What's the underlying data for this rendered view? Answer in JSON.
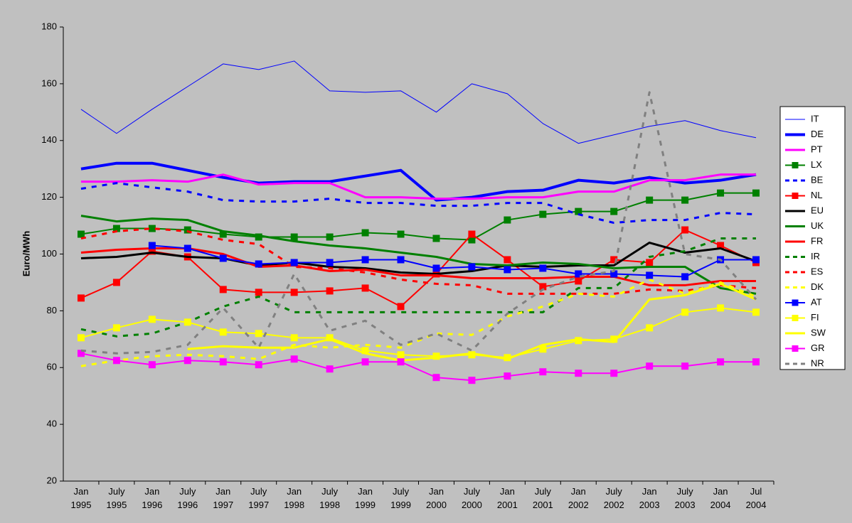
{
  "chart_data": {
    "type": "line",
    "y_label": "Euro/MWh",
    "categories": [
      [
        "Jan",
        "1995"
      ],
      [
        "July",
        "1995"
      ],
      [
        "Jan",
        "1996"
      ],
      [
        "July",
        "1996"
      ],
      [
        "Jan",
        "1997"
      ],
      [
        "July",
        "1997"
      ],
      [
        "Jan",
        "1998"
      ],
      [
        "July",
        "1998"
      ],
      [
        "Jan",
        "1999"
      ],
      [
        "July",
        "1999"
      ],
      [
        "Jan",
        "2000"
      ],
      [
        "July",
        "2000"
      ],
      [
        "Jan",
        "2001"
      ],
      [
        "July",
        "2001"
      ],
      [
        "Jan",
        "2002"
      ],
      [
        "July",
        "2002"
      ],
      [
        "Jan",
        "2003"
      ],
      [
        "July",
        "2003"
      ],
      [
        "Jan",
        "2004"
      ],
      [
        "Jul",
        "2004"
      ]
    ],
    "ylim": [
      20,
      180
    ],
    "yticks": [
      20,
      40,
      60,
      80,
      100,
      120,
      140,
      160,
      180
    ],
    "grid": false,
    "legend": "right",
    "series": [
      {
        "name": "IT",
        "color": "#0000ff",
        "line_width": 1,
        "dashed": false,
        "marker": false,
        "values": [
          151,
          142.5,
          151,
          159,
          167,
          165,
          168,
          157.5,
          157,
          157.5,
          150,
          160,
          156.5,
          146,
          139,
          142,
          145,
          147,
          143.5,
          141
        ]
      },
      {
        "name": "DE",
        "color": "#0000ff",
        "line_width": 4,
        "dashed": false,
        "marker": false,
        "values": [
          130,
          132,
          132,
          129.5,
          127,
          125,
          125.5,
          125.5,
          127.5,
          129.5,
          119,
          120,
          122,
          122.5,
          126,
          125,
          127,
          125,
          126,
          128
        ]
      },
      {
        "name": "PT",
        "color": "#ff00ff",
        "line_width": 3,
        "dashed": false,
        "marker": false,
        "values": [
          125.5,
          125.5,
          126,
          125.5,
          128,
          124.5,
          125,
          125,
          120,
          120,
          119.5,
          119.5,
          120,
          120,
          122,
          122,
          126,
          126,
          128,
          128
        ]
      },
      {
        "name": "LX",
        "color": "#008000",
        "line_width": 2,
        "dashed": false,
        "marker": true,
        "values": [
          107,
          109,
          109,
          108.5,
          107,
          106,
          106,
          106,
          107.5,
          107,
          105.5,
          105,
          112,
          114,
          115,
          115,
          119,
          119,
          121.5,
          121.5
        ]
      },
      {
        "name": "BE",
        "color": "#0000ff",
        "line_width": 3,
        "dashed": true,
        "marker": false,
        "values": [
          123,
          125,
          123.5,
          122,
          119,
          118.5,
          118.5,
          119.5,
          118,
          118,
          117,
          117,
          118,
          118,
          114,
          111,
          112,
          112,
          114.5,
          114
        ]
      },
      {
        "name": "NL",
        "color": "#ff0000",
        "line_width": 2,
        "dashed": false,
        "marker": true,
        "values": [
          84.5,
          90,
          101,
          99,
          87.5,
          86.5,
          86.5,
          87,
          88,
          81.5,
          93,
          107,
          98,
          88.5,
          90.5,
          98,
          97,
          108.5,
          103,
          97
        ]
      },
      {
        "name": "EU",
        "color": "#000000",
        "line_width": 3,
        "dashed": false,
        "marker": false,
        "values": [
          98.5,
          99,
          100.5,
          99,
          98.5,
          96,
          97,
          95.5,
          95,
          93.5,
          93,
          94,
          96,
          95.5,
          96,
          96,
          104,
          100.5,
          102,
          97.5
        ]
      },
      {
        "name": "UK",
        "color": "#008000",
        "line_width": 3,
        "dashed": false,
        "marker": false,
        "values": [
          113.5,
          111.5,
          112.5,
          112,
          108,
          106.5,
          104.5,
          103,
          102,
          100.5,
          99,
          96.5,
          96,
          97,
          96.5,
          95,
          95.5,
          95.5,
          88,
          86
        ]
      },
      {
        "name": "FR",
        "color": "#ff0000",
        "line_width": 3,
        "dashed": false,
        "marker": false,
        "values": [
          100.5,
          101.5,
          102,
          102,
          100,
          95.5,
          96,
          94,
          94.5,
          92.5,
          92.5,
          91.5,
          91.5,
          91.5,
          92,
          92,
          89,
          89,
          90.5,
          90.5
        ]
      },
      {
        "name": "IR",
        "color": "#008000",
        "line_width": 3,
        "dashed": true,
        "marker": false,
        "values": [
          73.5,
          71,
          72,
          76,
          81.5,
          85,
          79.5,
          79.5,
          79.5,
          79.5,
          79.5,
          79.5,
          79.5,
          79.5,
          88,
          88,
          99,
          101,
          105.5,
          105.5
        ]
      },
      {
        "name": "ES",
        "color": "#ff0000",
        "line_width": 3,
        "dashed": true,
        "marker": false,
        "values": [
          105.5,
          108,
          109,
          108,
          105,
          103.5,
          95.5,
          95,
          93.5,
          91,
          89.5,
          89,
          86,
          86,
          86,
          86,
          87.5,
          87,
          89,
          88
        ]
      },
      {
        "name": "DK",
        "color": "#ffff00",
        "line_width": 3,
        "dashed": true,
        "marker": false,
        "values": [
          60.5,
          62.5,
          64,
          64.5,
          64,
          63,
          68,
          67,
          68,
          67,
          72,
          71.5,
          78,
          81.5,
          86,
          85,
          91,
          86,
          90,
          85
        ]
      },
      {
        "name": "AT",
        "color": "#0000ff",
        "line_width": 2,
        "dashed": false,
        "marker": true,
        "values": [
          null,
          null,
          103,
          102,
          98.5,
          96.5,
          97,
          97,
          98,
          98,
          95,
          95.5,
          94.5,
          95,
          93,
          93,
          92.5,
          92,
          98,
          98
        ]
      },
      {
        "name": "FI",
        "color": "#ffff00",
        "line_width": 2,
        "dashed": false,
        "marker": true,
        "values": [
          70.5,
          74,
          77,
          76,
          72.5,
          72,
          70.5,
          70.5,
          66,
          64.5,
          64,
          64.5,
          63.5,
          66.5,
          69.5,
          70,
          74,
          79.5,
          81,
          79.5
        ]
      },
      {
        "name": "SW",
        "color": "#ffff00",
        "line_width": 3,
        "dashed": false,
        "marker": false,
        "values": [
          null,
          null,
          null,
          66.5,
          67.5,
          67,
          67,
          70,
          65,
          62.5,
          63.5,
          65,
          63,
          68,
          70,
          69,
          84,
          85.5,
          89.5,
          84
        ]
      },
      {
        "name": "GR",
        "color": "#ff00ff",
        "line_width": 2,
        "dashed": false,
        "marker": true,
        "values": [
          65,
          62.5,
          61,
          62.5,
          62,
          61,
          63,
          59.5,
          62,
          62,
          56.5,
          55.5,
          57,
          58.5,
          58,
          58,
          60.5,
          60.5,
          62,
          62
        ]
      },
      {
        "name": "NR",
        "color": "#808080",
        "line_width": 3,
        "dashed": true,
        "marker": false,
        "values": [
          66,
          65,
          65.5,
          68,
          81,
          67,
          93,
          73,
          76.5,
          68,
          72,
          66,
          79,
          87.5,
          92,
          94,
          157,
          100,
          98,
          84
        ]
      }
    ]
  }
}
